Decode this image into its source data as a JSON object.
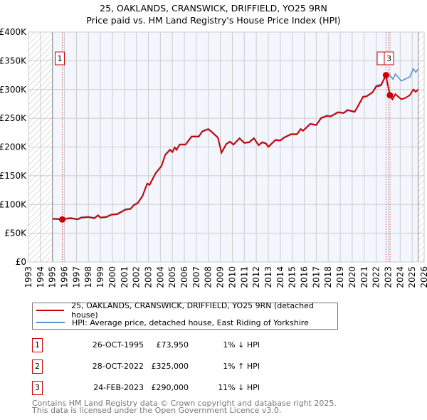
{
  "title": "25, OAKLANDS, CRANSWICK, DRIFFIELD, YO25 9RN",
  "subtitle": "Price paid vs. HM Land Registry's House Price Index (HPI)",
  "chart_data": {
    "type": "line",
    "xlim": [
      1993,
      2026
    ],
    "ylim": [
      0,
      400000
    ],
    "yticks": [
      {
        "v": 0,
        "l": "£0"
      },
      {
        "v": 50000,
        "l": "£50K"
      },
      {
        "v": 100000,
        "l": "£100K"
      },
      {
        "v": 150000,
        "l": "£150K"
      },
      {
        "v": 200000,
        "l": "£200K"
      },
      {
        "v": 250000,
        "l": "£250K"
      },
      {
        "v": 300000,
        "l": "£300K"
      },
      {
        "v": 350000,
        "l": "£350K"
      },
      {
        "v": 400000,
        "l": "£400K"
      }
    ],
    "xticks": [
      "1993",
      "1994",
      "1995",
      "1996",
      "1997",
      "1998",
      "1999",
      "2000",
      "2001",
      "2002",
      "2003",
      "2004",
      "2005",
      "2006",
      "2007",
      "2008",
      "2009",
      "2010",
      "2011",
      "2012",
      "2013",
      "2014",
      "2015",
      "2016",
      "2017",
      "2018",
      "2019",
      "2020",
      "2021",
      "2022",
      "2023",
      "2024",
      "2025",
      "2026"
    ],
    "data_range": [
      1995,
      2025.5
    ],
    "series": [
      {
        "name": "HPI: Average price, detached house, East Riding of Yorkshire",
        "color": "#5b8fd4",
        "points": [
          [
            1995,
            76
          ],
          [
            1995.8,
            75
          ],
          [
            1996.5,
            77
          ],
          [
            1997.1,
            75
          ],
          [
            1997.4,
            78
          ],
          [
            1998,
            79
          ],
          [
            1998.5,
            77
          ],
          [
            1998.8,
            82
          ],
          [
            1999,
            78
          ],
          [
            1999.5,
            79
          ],
          [
            1999.9,
            83
          ],
          [
            2000.4,
            84
          ],
          [
            2001.1,
            92
          ],
          [
            2001.5,
            93
          ],
          [
            2001.8,
            100
          ],
          [
            2002.1,
            103
          ],
          [
            2002.5,
            115
          ],
          [
            2002.9,
            137
          ],
          [
            2003.1,
            135
          ],
          [
            2003.6,
            155
          ],
          [
            2004.1,
            168
          ],
          [
            2004.4,
            187
          ],
          [
            2004.8,
            196
          ],
          [
            2005,
            192
          ],
          [
            2005.2,
            200
          ],
          [
            2005.35,
            196
          ],
          [
            2005.6,
            205
          ],
          [
            2006.1,
            205
          ],
          [
            2006.6,
            219
          ],
          [
            2007.2,
            219
          ],
          [
            2007.5,
            228
          ],
          [
            2008,
            232
          ],
          [
            2008.4,
            225
          ],
          [
            2008.8,
            217
          ],
          [
            2009.1,
            191
          ],
          [
            2009.5,
            206
          ],
          [
            2009.8,
            210
          ],
          [
            2010.1,
            205
          ],
          [
            2010.6,
            216
          ],
          [
            2011,
            208
          ],
          [
            2011.4,
            209
          ],
          [
            2011.8,
            216
          ],
          [
            2012.2,
            204
          ],
          [
            2012.5,
            209
          ],
          [
            2012.8,
            207
          ],
          [
            2013,
            201
          ],
          [
            2013.6,
            213
          ],
          [
            2014,
            212
          ],
          [
            2014.3,
            217
          ],
          [
            2014.9,
            223
          ],
          [
            2015.4,
            223
          ],
          [
            2015.7,
            232
          ],
          [
            2015.9,
            229
          ],
          [
            2016.5,
            241
          ],
          [
            2017,
            239
          ],
          [
            2017.4,
            251
          ],
          [
            2017.9,
            255
          ],
          [
            2018.2,
            254
          ],
          [
            2018.8,
            261
          ],
          [
            2019.3,
            260
          ],
          [
            2019.6,
            265
          ],
          [
            2020.2,
            262
          ],
          [
            2020.4,
            269
          ],
          [
            2020.9,
            288
          ],
          [
            2021.2,
            289
          ],
          [
            2021.7,
            296
          ],
          [
            2022,
            307
          ],
          [
            2022.4,
            309
          ],
          [
            2022.8,
            322
          ],
          [
            2023.1,
            326
          ],
          [
            2023.4,
            318
          ],
          [
            2023.6,
            327
          ],
          [
            2024.1,
            315
          ],
          [
            2024.4,
            318
          ],
          [
            2024.8,
            322
          ],
          [
            2025.1,
            336
          ],
          [
            2025.3,
            330
          ],
          [
            2025.5,
            336
          ]
        ]
      },
      {
        "name": "25, OAKLANDS, CRANSWICK, DRIFFIELD, YO25 9RN (detached house)",
        "color": "#cc0000",
        "points": [
          [
            1995,
            75
          ],
          [
            1995.8,
            74
          ],
          [
            1996.5,
            76
          ],
          [
            1997.1,
            74
          ],
          [
            1997.4,
            77
          ],
          [
            1998,
            78
          ],
          [
            1998.5,
            76
          ],
          [
            1998.8,
            81
          ],
          [
            1999,
            77
          ],
          [
            1999.5,
            78
          ],
          [
            1999.9,
            82
          ],
          [
            2000.4,
            83
          ],
          [
            2001.1,
            91
          ],
          [
            2001.5,
            92
          ],
          [
            2001.8,
            99
          ],
          [
            2002.1,
            102
          ],
          [
            2002.5,
            114
          ],
          [
            2002.9,
            136
          ],
          [
            2003.1,
            134
          ],
          [
            2003.6,
            154
          ],
          [
            2004.1,
            167
          ],
          [
            2004.4,
            186
          ],
          [
            2004.8,
            195
          ],
          [
            2005,
            191
          ],
          [
            2005.2,
            199
          ],
          [
            2005.35,
            195
          ],
          [
            2005.6,
            204
          ],
          [
            2006.1,
            204
          ],
          [
            2006.6,
            218
          ],
          [
            2007.2,
            218
          ],
          [
            2007.5,
            227
          ],
          [
            2008,
            231
          ],
          [
            2008.4,
            224
          ],
          [
            2008.8,
            216
          ],
          [
            2009.1,
            190
          ],
          [
            2009.5,
            205
          ],
          [
            2009.8,
            209
          ],
          [
            2010.1,
            204
          ],
          [
            2010.6,
            215
          ],
          [
            2011,
            207
          ],
          [
            2011.4,
            208
          ],
          [
            2011.8,
            215
          ],
          [
            2012.2,
            203
          ],
          [
            2012.5,
            208
          ],
          [
            2012.8,
            206
          ],
          [
            2013,
            200
          ],
          [
            2013.6,
            212
          ],
          [
            2014,
            211
          ],
          [
            2014.3,
            216
          ],
          [
            2014.9,
            222
          ],
          [
            2015.4,
            222
          ],
          [
            2015.7,
            231
          ],
          [
            2015.9,
            228
          ],
          [
            2016.5,
            240
          ],
          [
            2017,
            238
          ],
          [
            2017.4,
            250
          ],
          [
            2017.9,
            254
          ],
          [
            2018.2,
            253
          ],
          [
            2018.8,
            260
          ],
          [
            2019.3,
            259
          ],
          [
            2019.6,
            264
          ],
          [
            2020.2,
            261
          ],
          [
            2020.4,
            268
          ],
          [
            2020.9,
            287
          ],
          [
            2021.2,
            288
          ],
          [
            2021.7,
            295
          ],
          [
            2022,
            305
          ],
          [
            2022.4,
            307
          ],
          [
            2022.8,
            325
          ],
          [
            2023.15,
            290
          ],
          [
            2023.35,
            283
          ],
          [
            2023.6,
            292
          ],
          [
            2024.1,
            283
          ],
          [
            2024.4,
            285
          ],
          [
            2024.8,
            290
          ],
          [
            2025.1,
            300
          ],
          [
            2025.3,
            296
          ],
          [
            2025.5,
            300
          ]
        ]
      }
    ],
    "sales": [
      {
        "n": "1",
        "x": 1995.82,
        "y": 73950
      },
      {
        "n": "2",
        "x": 2022.82,
        "y": 325000
      },
      {
        "n": "3",
        "x": 2023.15,
        "y": 290000
      }
    ]
  },
  "legend": [
    "25, OAKLANDS, CRANSWICK, DRIFFIELD, YO25 9RN (detached house)",
    "HPI: Average price, detached house, East Riding of Yorkshire"
  ],
  "transactions": [
    {
      "n": "1",
      "date": "26-OCT-1995",
      "price": "£73,950",
      "hpi": "1% ↓ HPI"
    },
    {
      "n": "2",
      "date": "28-OCT-2022",
      "price": "£325,000",
      "hpi": "1% ↑ HPI"
    },
    {
      "n": "3",
      "date": "24-FEB-2023",
      "price": "£290,000",
      "hpi": "11% ↓ HPI"
    }
  ],
  "footer": [
    "Contains HM Land Registry data © Crown copyright and database right 2025.",
    "This data is licensed under the Open Government Licence v3.0."
  ]
}
